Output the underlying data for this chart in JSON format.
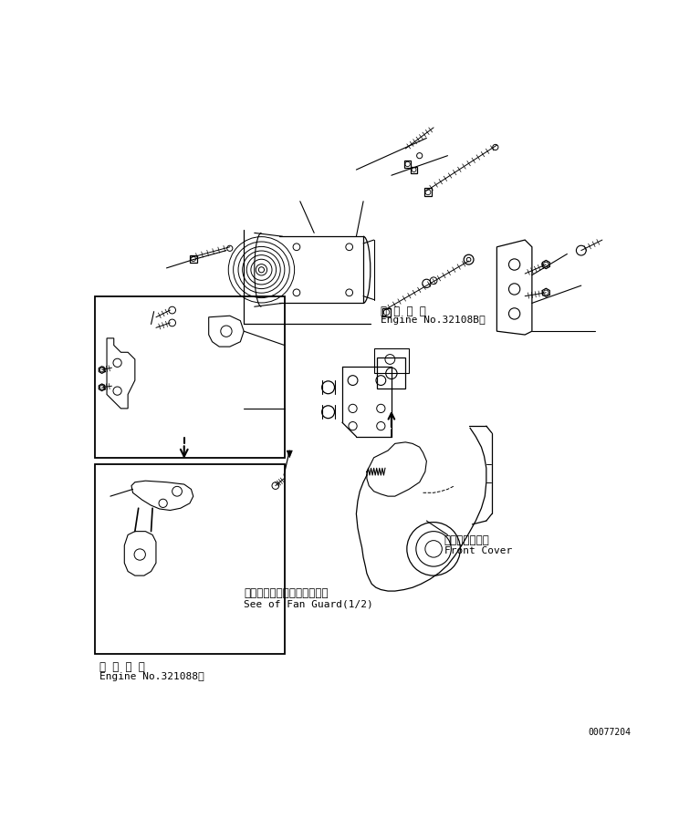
{
  "bg_color": "#ffffff",
  "line_color": "#000000",
  "fig_width": 7.67,
  "fig_height": 9.09,
  "dpi": 100,
  "part_number": "00077204",
  "text_engine_no1_line1": "適用号機",
  "text_engine_no1_line2": "Engine No.32108B～",
  "text_engine_no2_line1": "適用号機",
  "text_engine_no2_line2": "Engine No.321088～",
  "text_fan_guard_line1": "ファンガード（1／2）参照",
  "text_fan_guard_line2": "See of Fan Guard(1/2)",
  "text_front_cover_line1": "フロントカバー",
  "text_front_cover_line2": "Front Cover"
}
